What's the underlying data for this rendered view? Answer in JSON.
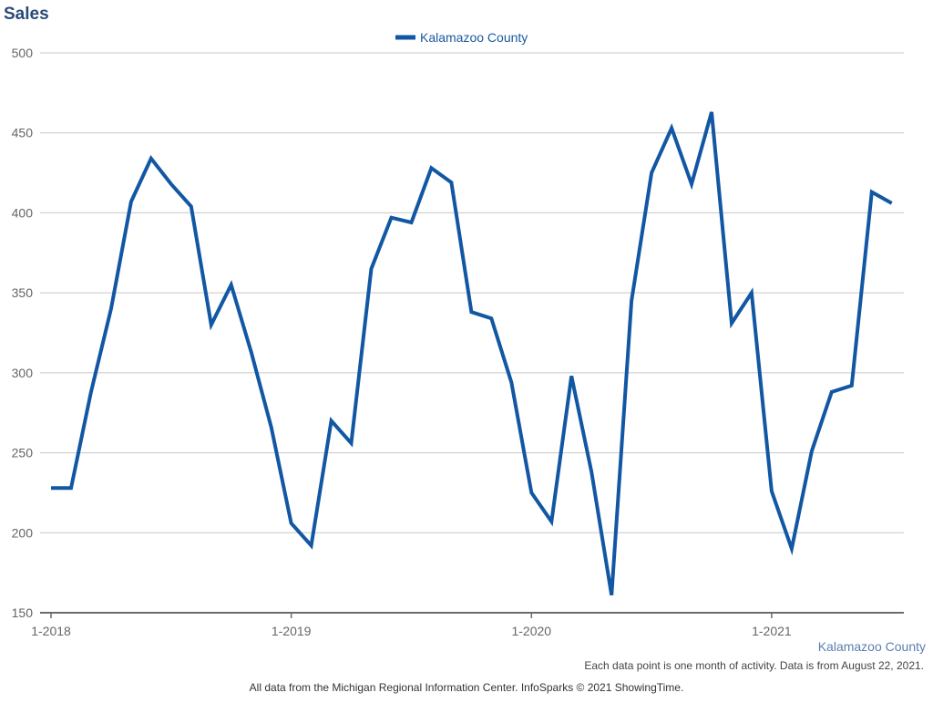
{
  "chart_data": {
    "type": "line",
    "title": "Sales",
    "ylim": [
      150,
      500
    ],
    "y_ticks": [
      "150",
      "200",
      "250",
      "300",
      "350",
      "400",
      "450",
      "500"
    ],
    "x_tick_labels": [
      "1-2018",
      "1-2019",
      "1-2020",
      "1-2021"
    ],
    "x": [
      "1-2018",
      "2-2018",
      "3-2018",
      "4-2018",
      "5-2018",
      "6-2018",
      "7-2018",
      "8-2018",
      "9-2018",
      "10-2018",
      "11-2018",
      "12-2018",
      "1-2019",
      "2-2019",
      "3-2019",
      "4-2019",
      "5-2019",
      "6-2019",
      "7-2019",
      "8-2019",
      "9-2019",
      "10-2019",
      "11-2019",
      "12-2019",
      "1-2020",
      "2-2020",
      "3-2020",
      "4-2020",
      "5-2020",
      "6-2020",
      "7-2020",
      "8-2020",
      "9-2020",
      "10-2020",
      "11-2020",
      "12-2020",
      "1-2021",
      "2-2021",
      "3-2021",
      "4-2021",
      "5-2021",
      "6-2021",
      "7-2021"
    ],
    "series": [
      {
        "name": "Kalamazoo County",
        "color": "#1257a3",
        "values": [
          228,
          228,
          288,
          340,
          407,
          434,
          418,
          404,
          330,
          355,
          313,
          266,
          206,
          192,
          270,
          256,
          365,
          397,
          394,
          428,
          419,
          338,
          334,
          294,
          225,
          207,
          298,
          238,
          161,
          345,
          425,
          453,
          418,
          463,
          331,
          350,
          226,
          190,
          251,
          288,
          292,
          413,
          406
        ]
      }
    ],
    "grid": true,
    "legend_position": "top-center"
  },
  "region_label": "Kalamazoo County",
  "note": "Each data point is one month of activity. Data is from August 22, 2021.",
  "footer": "All data from the Michigan Regional Information Center. InfoSparks © 2021 ShowingTime."
}
